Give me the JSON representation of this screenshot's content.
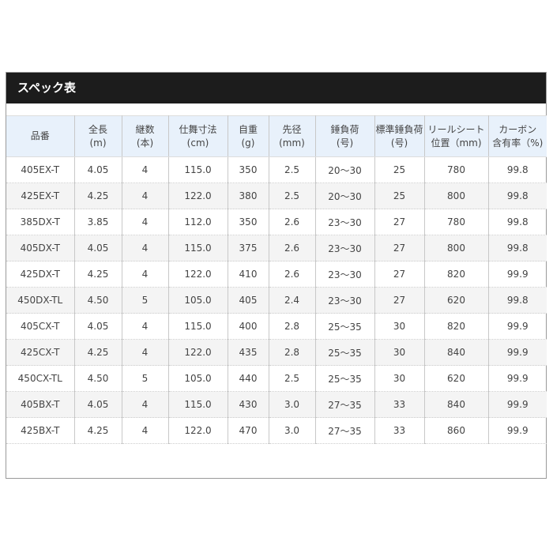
{
  "title": "スペック表",
  "columns": [
    [
      "品番",
      ""
    ],
    [
      "全長",
      "(m)"
    ],
    [
      "継数",
      "(本)"
    ],
    [
      "仕舞寸法",
      "(cm)"
    ],
    [
      "自重",
      "(g)"
    ],
    [
      "先径",
      "(mm)"
    ],
    [
      "錘負荷",
      "(号)"
    ],
    [
      "標準錘負荷",
      "(号)"
    ],
    [
      "リールシート",
      "位置（mm)"
    ],
    [
      "カーボン",
      "含有率（%)"
    ]
  ],
  "rows": [
    [
      "405EX-T",
      "4.05",
      "4",
      "115.0",
      "350",
      "2.5",
      "20〜30",
      "25",
      "780",
      "99.8"
    ],
    [
      "425EX-T",
      "4.25",
      "4",
      "122.0",
      "380",
      "2.5",
      "20〜30",
      "25",
      "800",
      "99.8"
    ],
    [
      "385DX-T",
      "3.85",
      "4",
      "112.0",
      "350",
      "2.6",
      "23〜30",
      "27",
      "780",
      "99.8"
    ],
    [
      "405DX-T",
      "4.05",
      "4",
      "115.0",
      "375",
      "2.6",
      "23〜30",
      "27",
      "800",
      "99.8"
    ],
    [
      "425DX-T",
      "4.25",
      "4",
      "122.0",
      "410",
      "2.6",
      "23〜30",
      "27",
      "820",
      "99.9"
    ],
    [
      "450DX-TL",
      "4.50",
      "5",
      "105.0",
      "405",
      "2.4",
      "23〜30",
      "27",
      "620",
      "99.8"
    ],
    [
      "405CX-T",
      "4.05",
      "4",
      "115.0",
      "400",
      "2.8",
      "25〜35",
      "30",
      "820",
      "99.9"
    ],
    [
      "425CX-T",
      "4.25",
      "4",
      "122.0",
      "435",
      "2.8",
      "25〜35",
      "30",
      "840",
      "99.9"
    ],
    [
      "450CX-TL",
      "4.50",
      "5",
      "105.0",
      "440",
      "2.5",
      "25〜35",
      "30",
      "620",
      "99.9"
    ],
    [
      "405BX-T",
      "4.05",
      "4",
      "115.0",
      "430",
      "3.0",
      "27〜35",
      "33",
      "840",
      "99.9"
    ],
    [
      "425BX-T",
      "4.25",
      "4",
      "122.0",
      "470",
      "3.0",
      "27〜35",
      "33",
      "860",
      "99.9"
    ]
  ]
}
